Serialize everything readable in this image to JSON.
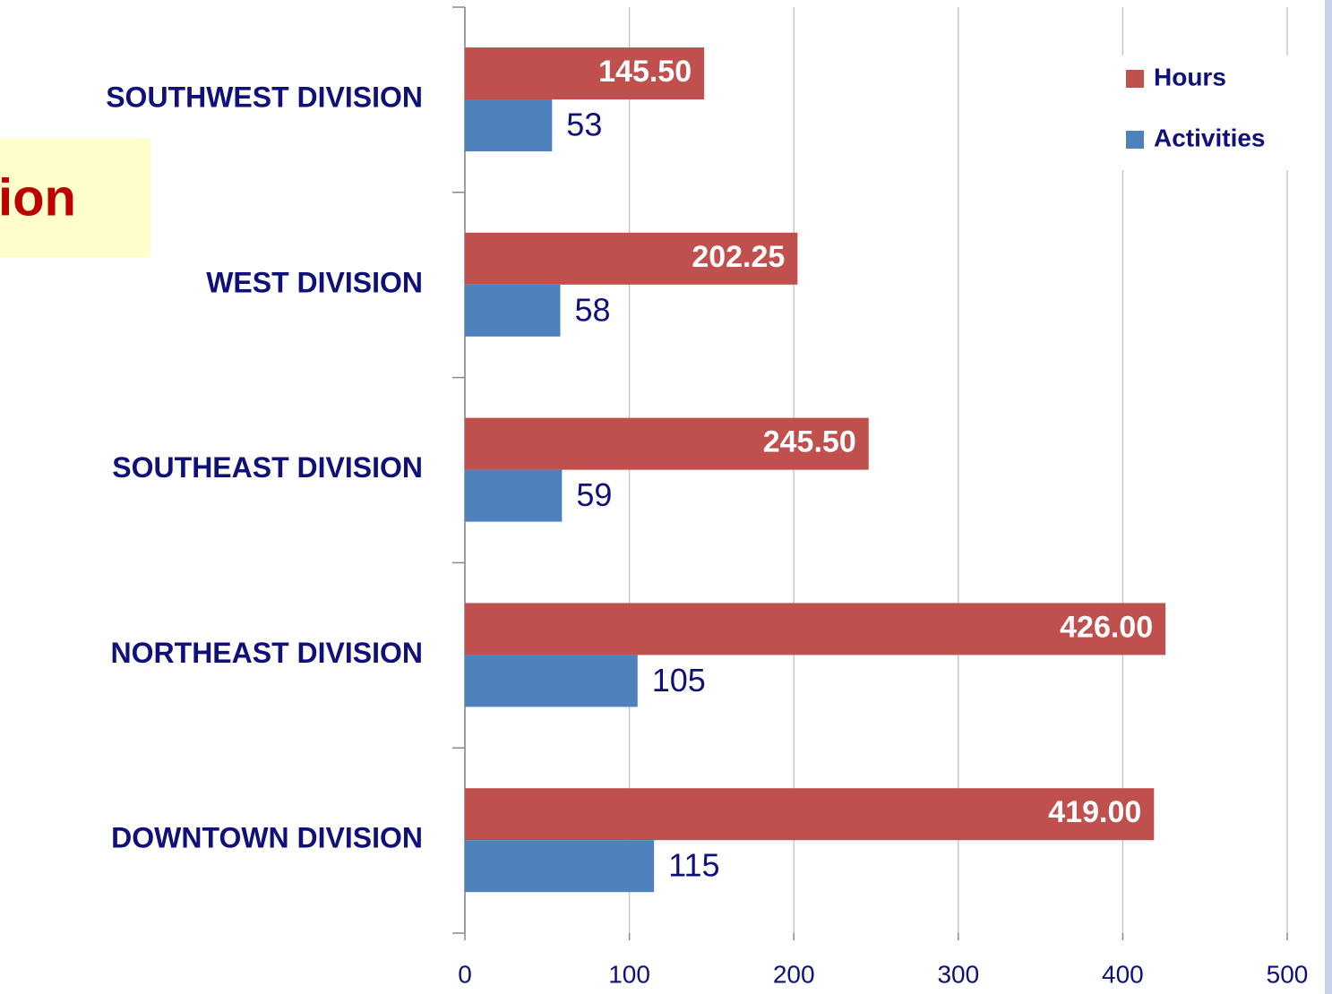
{
  "annotation": "ion",
  "chart_data": {
    "type": "barh",
    "categories": [
      "SOUTHWEST DIVISION",
      "WEST DIVISION",
      "SOUTHEAST DIVISION",
      "NORTHEAST DIVISION",
      "DOWNTOWN DIVISION"
    ],
    "series": [
      {
        "name": "Hours",
        "color": "#c0504d",
        "values": [
          145.5,
          202.25,
          245.5,
          426,
          419
        ],
        "value_labels": [
          "145.50",
          "202.25",
          "245.50",
          "426.00",
          "419.00"
        ]
      },
      {
        "name": "Activities",
        "color": "#4f81bd",
        "values": [
          53,
          58,
          59,
          105,
          115
        ]
      }
    ],
    "xlim": [
      0,
      500
    ],
    "xticks": [
      0,
      100,
      200,
      300,
      400,
      500
    ],
    "grid": true,
    "legend": "top-right"
  }
}
